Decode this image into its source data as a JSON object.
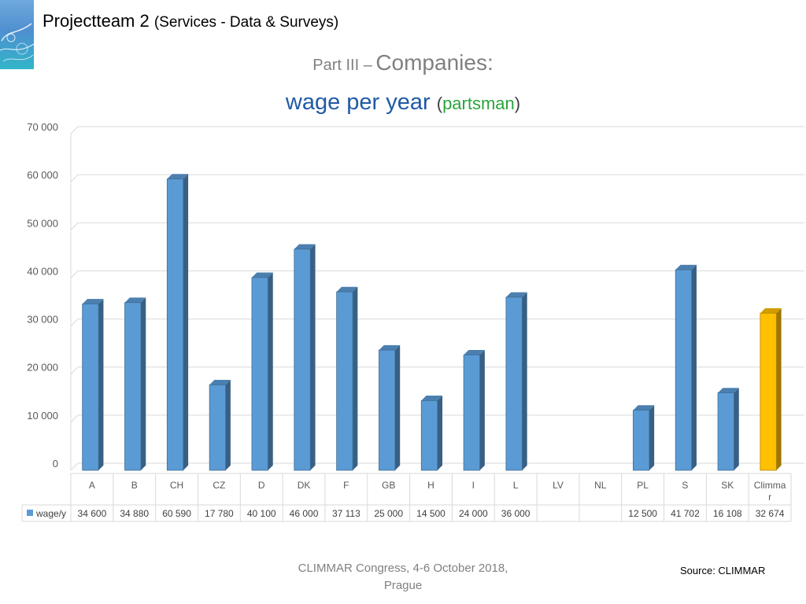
{
  "header": {
    "title": "Projectteam 2",
    "subtitle": "(Services - Data & Surveys)"
  },
  "section": {
    "prefix": "Part III –",
    "name": "Companies:"
  },
  "chart_title": {
    "main": "wage per year",
    "open": "(",
    "sub": "partsman",
    "close": ")"
  },
  "colors": {
    "bar": "#5b9bd5",
    "highlight_bar": "#ffc000",
    "title_blue": "#1f5aa6",
    "title_green": "#2aa53b",
    "grid": "#d9d9d9"
  },
  "chart_data": {
    "type": "bar",
    "title": "wage per year (partsman)",
    "categories": [
      "A",
      "B",
      "CH",
      "CZ",
      "D",
      "DK",
      "F",
      "GB",
      "H",
      "I",
      "L",
      "LV",
      "NL",
      "PL",
      "S",
      "SK",
      "Climmar"
    ],
    "category_labels": [
      [
        "A"
      ],
      [
        "B"
      ],
      [
        "CH"
      ],
      [
        "CZ"
      ],
      [
        "D"
      ],
      [
        "DK"
      ],
      [
        "F"
      ],
      [
        "GB"
      ],
      [
        "H"
      ],
      [
        "I"
      ],
      [
        "L"
      ],
      [
        "LV"
      ],
      [
        "NL"
      ],
      [
        "PL"
      ],
      [
        "S"
      ],
      [
        "SK"
      ],
      [
        "Climma",
        "r"
      ]
    ],
    "series": [
      {
        "name": "wage/y",
        "values": [
          34600,
          34880,
          60590,
          17780,
          40100,
          46000,
          37113,
          25000,
          14500,
          24000,
          36000,
          null,
          null,
          12500,
          41702,
          16108,
          32674
        ],
        "value_labels": [
          "34 600",
          "34 880",
          "60 590",
          "17 780",
          "40 100",
          "46 000",
          "37 113",
          "25 000",
          "14 500",
          "24 000",
          "36 000",
          "",
          "",
          "12 500",
          "41 702",
          "16 108",
          "32 674"
        ]
      }
    ],
    "highlight_category": "Climmar",
    "ylim": [
      0,
      70000
    ],
    "yticks": [
      0,
      10000,
      20000,
      30000,
      40000,
      50000,
      60000,
      70000
    ],
    "ytick_labels": [
      "0",
      "10 000",
      "20 000",
      "30 000",
      "40 000",
      "50 000",
      "60 000",
      "70 000"
    ],
    "grid": true,
    "bar_style": "3d",
    "legend": "data-table"
  },
  "footer": {
    "line1": "CLIMMAR Congress, 4-6 October 2018,",
    "line2": "Prague"
  },
  "source": "Source: CLIMMAR"
}
